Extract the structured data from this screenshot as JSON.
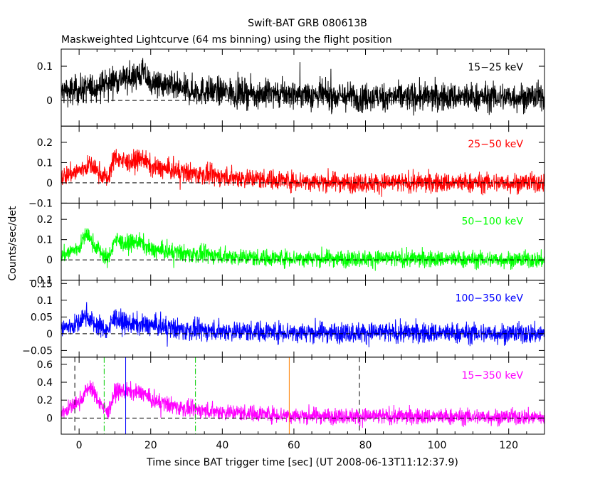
{
  "title": "Swift-BAT GRB 080613B",
  "subtitle": "Maskweighted Lightcurve (64 ms binning) using the flight position",
  "xlabel": "Time since BAT trigger time [sec] (UT 2008-06-13T11:12:37.9)",
  "ylabel": "Counts/sec/det",
  "chart_data": {
    "type": "line",
    "title": "Swift-BAT GRB 080613B",
    "subtitle": "Maskweighted Lightcurve (64 ms binning) using the flight position",
    "xlabel": "Time since BAT trigger time [sec] (UT 2008-06-13T11:12:37.9)",
    "ylabel": "Counts/sec/det",
    "xlim": [
      -5,
      130
    ],
    "xticks": [
      "0",
      "20",
      "40",
      "60",
      "80",
      "100",
      "120"
    ],
    "xtick_values": [
      0,
      20,
      40,
      60,
      80,
      100,
      120
    ],
    "bin_seconds": 0.064,
    "panels": [
      {
        "name": "15−25 keV",
        "color": "#000000",
        "ylim": [
          -0.075,
          0.15
        ],
        "yticks": [
          "0",
          "0.1"
        ],
        "ytick_values": [
          0,
          0.1
        ],
        "noise": 0.03,
        "envelope": [
          [
            -5,
            0.025
          ],
          [
            0,
            0.03
          ],
          [
            5,
            0.04
          ],
          [
            10,
            0.06
          ],
          [
            15,
            0.07
          ],
          [
            18,
            0.08
          ],
          [
            20,
            0.05
          ],
          [
            30,
            0.03
          ],
          [
            50,
            0.02
          ],
          [
            80,
            0.01
          ],
          [
            130,
            0.01
          ]
        ]
      },
      {
        "name": "25−50 keV",
        "color": "#ff0000",
        "ylim": [
          -0.1,
          0.28
        ],
        "yticks": [
          "−0.1",
          "0",
          "0.1",
          "0.2"
        ],
        "ytick_values": [
          -0.1,
          0,
          0.1,
          0.2
        ],
        "noise": 0.035,
        "envelope": [
          [
            -5,
            0.03
          ],
          [
            0,
            0.06
          ],
          [
            3,
            0.09
          ],
          [
            5,
            0.06
          ],
          [
            8,
            0.02
          ],
          [
            10,
            0.13
          ],
          [
            13,
            0.1
          ],
          [
            18,
            0.12
          ],
          [
            20,
            0.08
          ],
          [
            30,
            0.05
          ],
          [
            40,
            0.03
          ],
          [
            60,
            0.01
          ],
          [
            80,
            0.0
          ],
          [
            130,
            0.0
          ]
        ]
      },
      {
        "name": "50−100 keV",
        "color": "#00ff00",
        "ylim": [
          -0.1,
          0.28
        ],
        "yticks": [
          "−0.1",
          "0",
          "0.1",
          "0.2"
        ],
        "ytick_values": [
          -0.1,
          0,
          0.1,
          0.2
        ],
        "noise": 0.03,
        "envelope": [
          [
            -5,
            0.02
          ],
          [
            0,
            0.06
          ],
          [
            2,
            0.13
          ],
          [
            4,
            0.08
          ],
          [
            7,
            0.02
          ],
          [
            8,
            0.0
          ],
          [
            10,
            0.1
          ],
          [
            13,
            0.08
          ],
          [
            17,
            0.09
          ],
          [
            20,
            0.05
          ],
          [
            30,
            0.03
          ],
          [
            50,
            0.01
          ],
          [
            130,
            0.0
          ]
        ]
      },
      {
        "name": "100−350 keV",
        "color": "#0000ff",
        "ylim": [
          -0.07,
          0.16
        ],
        "yticks": [
          "−0.05",
          "0",
          "0.05",
          "0.1",
          "0.15"
        ],
        "ytick_values": [
          -0.05,
          0,
          0.05,
          0.1,
          0.15
        ],
        "noise": 0.022,
        "envelope": [
          [
            -5,
            0.015
          ],
          [
            0,
            0.03
          ],
          [
            2,
            0.06
          ],
          [
            4,
            0.03
          ],
          [
            8,
            0.01
          ],
          [
            10,
            0.05
          ],
          [
            13,
            0.03
          ],
          [
            20,
            0.025
          ],
          [
            30,
            0.01
          ],
          [
            60,
            0.005
          ],
          [
            130,
            0.0
          ]
        ]
      },
      {
        "name": "15−350 keV",
        "color": "#ff00ff",
        "ylim": [
          -0.18,
          0.68
        ],
        "yticks": [
          "0",
          "0.2",
          "0.4",
          "0.6"
        ],
        "ytick_values": [
          0,
          0.2,
          0.4,
          0.6
        ],
        "noise": 0.065,
        "envelope": [
          [
            -5,
            0.06
          ],
          [
            0,
            0.18
          ],
          [
            3,
            0.36
          ],
          [
            5,
            0.22
          ],
          [
            8,
            0.05
          ],
          [
            10,
            0.3
          ],
          [
            13,
            0.3
          ],
          [
            18,
            0.28
          ],
          [
            20,
            0.2
          ],
          [
            30,
            0.1
          ],
          [
            40,
            0.07
          ],
          [
            60,
            0.03
          ],
          [
            80,
            0.02
          ],
          [
            130,
            0.01
          ]
        ],
        "markers": [
          {
            "x": -1.2,
            "color": "#000000",
            "style": "dashed"
          },
          {
            "x": 7.0,
            "color": "#00cc00",
            "style": "dashdot"
          },
          {
            "x": 13.0,
            "color": "#0000ff",
            "style": "solid"
          },
          {
            "x": 32.5,
            "color": "#00cc00",
            "style": "dashdot"
          },
          {
            "x": 58.7,
            "color": "#ff8000",
            "style": "solid"
          },
          {
            "x": 78.3,
            "color": "#000000",
            "style": "dashed"
          }
        ]
      }
    ]
  }
}
